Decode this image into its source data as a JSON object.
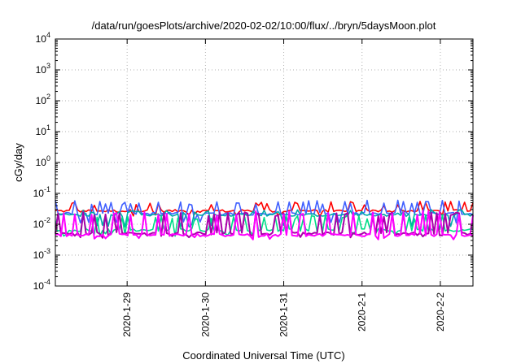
{
  "chart_data": {
    "type": "line",
    "title": "/data/run/goesPlots/archive/2020-02-02/10:00/flux/../bryn/5daysMoon.plot",
    "xlabel": "Coordinated Universal Time (UTC)",
    "ylabel": "cGy/day",
    "yscale": "log",
    "ylim": [
      0.0001,
      10000
    ],
    "y_ticks": [
      {
        "base": "10",
        "exp": "-4",
        "value": 0.0001
      },
      {
        "base": "10",
        "exp": "-3",
        "value": 0.001
      },
      {
        "base": "10",
        "exp": "-2",
        "value": 0.01
      },
      {
        "base": "10",
        "exp": "-1",
        "value": 0.1
      },
      {
        "base": "10",
        "exp": "0",
        "value": 1
      },
      {
        "base": "10",
        "exp": "1",
        "value": 10
      },
      {
        "base": "10",
        "exp": "2",
        "value": 100
      },
      {
        "base": "10",
        "exp": "3",
        "value": 1000
      },
      {
        "base": "10",
        "exp": "4",
        "value": 10000
      }
    ],
    "xlim": [
      "2020-01-28T02:00",
      "2020-02-02T10:00"
    ],
    "x_ticks": [
      {
        "label": "2020-1-29",
        "value": "2020-01-29T00:00"
      },
      {
        "label": "2020-1-30",
        "value": "2020-01-30T00:00"
      },
      {
        "label": "2020-1-31",
        "value": "2020-01-31T00:00"
      },
      {
        "label": "2020-2-1",
        "value": "2020-02-01T00:00"
      },
      {
        "label": "2020-2-2",
        "value": "2020-02-02T00:00"
      }
    ],
    "grid": true,
    "series": [
      {
        "color": "#ff0000",
        "baseline": 0.027,
        "spike": 0.055,
        "dip": 0.02
      },
      {
        "color": "#4060ff",
        "baseline": 0.022,
        "spike": 0.06,
        "dip": 0.012
      },
      {
        "color": "#00aaaa",
        "baseline": 0.02,
        "spike": 0.03,
        "dip": 0.009
      },
      {
        "color": "#00dd88",
        "baseline": 0.0065,
        "spike": 0.02,
        "dip": 0.0045
      },
      {
        "color": "#aa00aa",
        "baseline": 0.005,
        "spike": 0.025,
        "dip": 0.004
      },
      {
        "color": "#ff00ff",
        "baseline": 0.0045,
        "spike": 0.028,
        "dip": 0.0035
      }
    ]
  }
}
